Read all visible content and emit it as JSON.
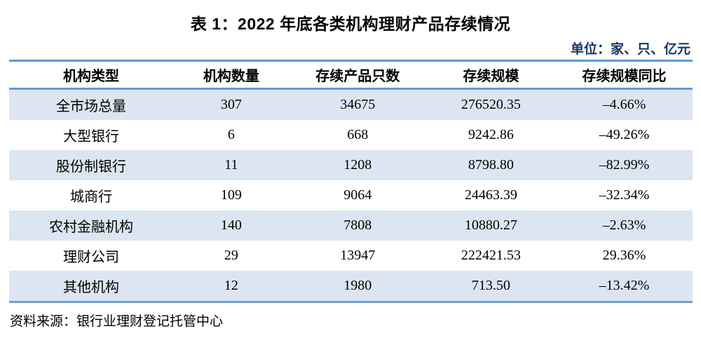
{
  "page": {
    "title": "表 1：2022 年底各类机构理财产品存续情况",
    "unit_note": "单位：家、只、亿元",
    "source": "资料来源：银行业理财登记托管中心"
  },
  "table": {
    "columns": [
      "机构类型",
      "机构数量",
      "存续产品只数",
      "存续规模",
      "存续规模同比"
    ],
    "rows": [
      [
        "全市场总量",
        "307",
        "34675",
        "276520.35",
        "–4.66%"
      ],
      [
        "大型银行",
        "6",
        "668",
        "9242.86",
        "–49.26%"
      ],
      [
        "股份制银行",
        "11",
        "1208",
        "8798.80",
        "–82.99%"
      ],
      [
        "城商行",
        "109",
        "9064",
        "24463.39",
        "–32.34%"
      ],
      [
        "农村金融机构",
        "140",
        "7808",
        "10880.27",
        "–2.63%"
      ],
      [
        "理财公司",
        "29",
        "13947",
        "222421.53",
        "29.36%"
      ],
      [
        "其他机构",
        "12",
        "1980",
        "713.50",
        "–13.42%"
      ]
    ]
  },
  "colors": {
    "accent_line": "#5b9bd5",
    "bottom_line": "#6fa1cb",
    "alt_row_bg": "#dce6f2",
    "unit_text": "#17375e"
  }
}
